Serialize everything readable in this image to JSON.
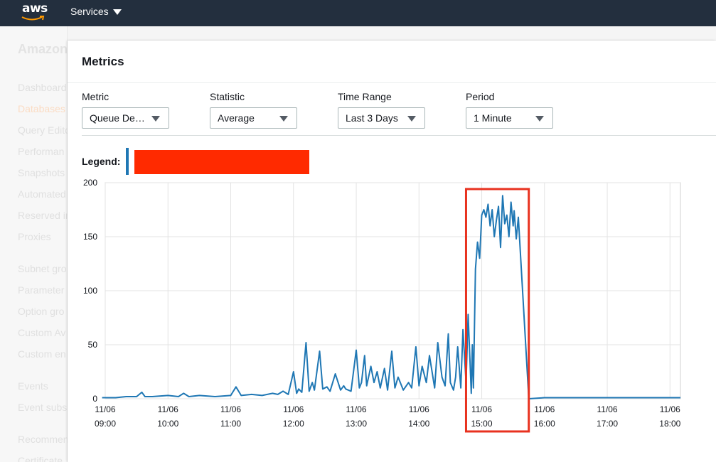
{
  "topbar": {
    "logo_text": "aws",
    "services_label": "Services"
  },
  "background_sidebar": {
    "title": "Amazon",
    "items": [
      "Dashboard",
      "Databases",
      "Query Edito",
      "Performan",
      "Snapshots",
      "Automated",
      "Reserved in",
      "Proxies",
      "Subnet gro",
      "Parameter",
      "Option gro",
      "Custom Av",
      "Custom en",
      "Events",
      "Event subs",
      "Recommen",
      "Certificate"
    ]
  },
  "panel": {
    "title": "Metrics",
    "controls": {
      "metric": {
        "label": "Metric",
        "value": "Queue De…"
      },
      "statistic": {
        "label": "Statistic",
        "value": "Average"
      },
      "time_range": {
        "label": "Time Range",
        "value": "Last 3 Days"
      },
      "period": {
        "label": "Period",
        "value": "1 Minute"
      }
    },
    "legend_label": "Legend:"
  },
  "colors": {
    "series": "#1f77b4",
    "highlight": "#e8321f",
    "redaction": "#ff2a00",
    "topbar": "#232f3e"
  },
  "chart_data": {
    "type": "line",
    "x_unit": "time (HH:MM)",
    "x_range": [
      "09:00",
      "18:10"
    ],
    "xticks": [
      {
        "date": "11/06",
        "time": "09:00"
      },
      {
        "date": "11/06",
        "time": "10:00"
      },
      {
        "date": "11/06",
        "time": "11:00"
      },
      {
        "date": "11/06",
        "time": "12:00"
      },
      {
        "date": "11/06",
        "time": "13:00"
      },
      {
        "date": "11/06",
        "time": "14:00"
      },
      {
        "date": "11/06",
        "time": "15:00"
      },
      {
        "date": "11/06",
        "time": "16:00"
      },
      {
        "date": "11/06",
        "time": "17:00"
      },
      {
        "date": "11/06",
        "time": "18:00"
      }
    ],
    "ylim": [
      0,
      200
    ],
    "yticks": [
      0,
      50,
      100,
      150,
      200
    ],
    "grid": true,
    "highlight_range": [
      "14:45",
      "15:45"
    ],
    "series": [
      {
        "x": [
          "08:57",
          "09:10",
          "09:20",
          "09:30",
          "09:35",
          "09:38",
          "09:45",
          "10:00",
          "10:10",
          "10:15",
          "10:20",
          "10:30",
          "10:45",
          "11:00",
          "11:05",
          "11:10",
          "11:20",
          "11:30",
          "11:40",
          "11:45",
          "11:50",
          "11:55",
          "12:00",
          "12:03",
          "12:05",
          "12:08",
          "12:12",
          "12:15",
          "12:18",
          "12:20",
          "12:25",
          "12:28",
          "12:32",
          "12:35",
          "12:40",
          "12:45",
          "12:48",
          "12:50",
          "12:55",
          "13:00",
          "13:03",
          "13:05",
          "13:08",
          "13:10",
          "13:14",
          "13:17",
          "13:20",
          "13:23",
          "13:27",
          "13:30",
          "13:34",
          "13:37",
          "13:40",
          "13:45",
          "13:50",
          "13:53",
          "13:57",
          "14:00",
          "14:03",
          "14:07",
          "14:10",
          "14:15",
          "14:18",
          "14:22",
          "14:25",
          "14:28",
          "14:30",
          "14:33",
          "14:35",
          "14:37",
          "14:40",
          "14:42",
          "14:45",
          "14:47",
          "14:50",
          "14:51",
          "14:52",
          "14:54",
          "14:56",
          "14:58",
          "15:00",
          "15:02",
          "15:04",
          "15:06",
          "15:08",
          "15:10",
          "15:12",
          "15:14",
          "15:16",
          "15:18",
          "15:20",
          "15:22",
          "15:24",
          "15:26",
          "15:28",
          "15:30",
          "15:31",
          "15:33",
          "15:35",
          "15:45",
          "16:00",
          "17:00",
          "18:10"
        ],
        "y": [
          1,
          1,
          2,
          2,
          6,
          2,
          2,
          3,
          2,
          5,
          2,
          3,
          2,
          3,
          11,
          3,
          4,
          3,
          5,
          4,
          7,
          4,
          25,
          5,
          9,
          6,
          52,
          7,
          15,
          8,
          44,
          9,
          11,
          7,
          23,
          8,
          12,
          9,
          7,
          45,
          10,
          15,
          40,
          12,
          30,
          15,
          25,
          10,
          28,
          8,
          44,
          10,
          20,
          8,
          15,
          10,
          48,
          12,
          30,
          15,
          40,
          10,
          52,
          20,
          12,
          60,
          15,
          8,
          20,
          48,
          10,
          64,
          15,
          78,
          5,
          50,
          10,
          120,
          145,
          130,
          170,
          175,
          168,
          180,
          160,
          175,
          150,
          165,
          178,
          140,
          188,
          162,
          170,
          150,
          182,
          160,
          174,
          148,
          168,
          0,
          1,
          1,
          1
        ]
      }
    ]
  }
}
